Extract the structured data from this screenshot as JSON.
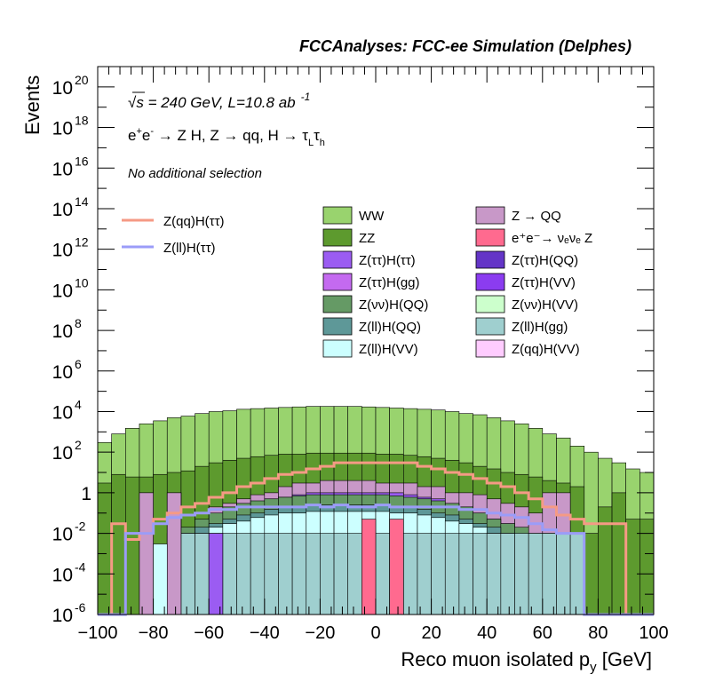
{
  "header": {
    "title": "FCCAnalyses: FCC-ee Simulation (Delphes)"
  },
  "annotations": {
    "sqrt": "√",
    "energy_lumi": "s = 240 GeV, L=10.8 ab",
    "lumi_exp": "-1",
    "process_parts": [
      "e",
      "+",
      "e",
      "-",
      " → Z H, Z  → qq, H  → τ",
      "L",
      "τ",
      "h"
    ],
    "selection": "No additional selection"
  },
  "colors": {
    "WW": "#99d36e",
    "ZZ": "#5d9a2e",
    "Z_QQ": "#c898c8",
    "eeZ": "#ff6a8f",
    "tautau_tautau": "#9b5cf2",
    "tautau_QQ": "#6435c7",
    "tautau_gg": "#c46af0",
    "tautau_VV": "#8b3cf0",
    "nunu_QQ": "#659a65",
    "nunu_VV": "#ccffcc",
    "ll_QQ": "#5e9898",
    "ll_gg": "#9fcfcf",
    "ll_VV": "#ccffff",
    "qq_VV": "#ffccff",
    "sig_qq": "#f59a85",
    "sig_ll": "#9b9cf8"
  },
  "chart_data": {
    "type": "histogram",
    "stacked": true,
    "log_y": true,
    "xlabel": "Reco muon isolated p",
    "xlabel_sub": "y",
    "xlabel_unit": " [GeV]",
    "ylabel": "Events",
    "xlim": [
      -100,
      100
    ],
    "ylim": [
      1e-06,
      1e+21
    ],
    "bin_width": 5,
    "x_ticks": [
      "−100",
      "−80",
      "−60",
      "−40",
      "−20",
      "0",
      "20",
      "40",
      "60",
      "80",
      "100"
    ],
    "y_ticks": [
      {
        "base": "10",
        "exp": "20"
      },
      {
        "base": "10",
        "exp": "18"
      },
      {
        "base": "10",
        "exp": "16"
      },
      {
        "base": "10",
        "exp": "14"
      },
      {
        "base": "10",
        "exp": "12"
      },
      {
        "base": "10",
        "exp": "10"
      },
      {
        "base": "10",
        "exp": "8"
      },
      {
        "base": "10",
        "exp": "6"
      },
      {
        "base": "10",
        "exp": "4"
      },
      {
        "base": "10",
        "exp": "2"
      },
      {
        "base": "1",
        "exp": ""
      },
      {
        "base": "10",
        "exp": "-2"
      },
      {
        "base": "10",
        "exp": "-4"
      },
      {
        "base": "10",
        "exp": "-6"
      }
    ],
    "legend_signals": [
      {
        "key": "sig_qq",
        "label": "Z(qq)H(ττ)"
      },
      {
        "key": "sig_ll",
        "label": "Z(ll)H(ττ)"
      }
    ],
    "legend_backgrounds": [
      {
        "key": "WW",
        "label": "WW"
      },
      {
        "key": "Z_QQ",
        "label": "Z → QQ"
      },
      {
        "key": "ZZ",
        "label": "ZZ"
      },
      {
        "key": "eeZ",
        "label": "e⁺e⁻→ νₑνₑ Z"
      },
      {
        "key": "tautau_tautau",
        "label": "Z(ττ)H(ττ)"
      },
      {
        "key": "tautau_QQ",
        "label": "Z(ττ)H(QQ)"
      },
      {
        "key": "tautau_gg",
        "label": "Z(ττ)H(gg)"
      },
      {
        "key": "tautau_VV",
        "label": "Z(ττ)H(VV)"
      },
      {
        "key": "nunu_QQ",
        "label": "Z(νν)H(QQ)"
      },
      {
        "key": "nunu_VV",
        "label": "Z(νν)H(VV)"
      },
      {
        "key": "ll_QQ",
        "label": "Z(ll)H(QQ)"
      },
      {
        "key": "ll_gg",
        "label": "Z(ll)H(gg)"
      },
      {
        "key": "ll_VV",
        "label": "Z(ll)H(VV)"
      },
      {
        "key": "qq_VV",
        "label": "Z(qq)H(VV)"
      }
    ],
    "stack_totals": [
      {
        "key": "WW",
        "values": [
          300.0,
          800.0,
          1500.0,
          2500.0,
          3500.0,
          5000.0,
          6000.0,
          8000.0,
          10000.0,
          11000.0,
          13000.0,
          14000.0,
          15000.0,
          16000.0,
          17000.0,
          18000.0,
          18000.0,
          18000.0,
          18000.0,
          17000.0,
          16000.0,
          15000.0,
          14000.0,
          13000.0,
          12000.0,
          10000.0,
          8000.0,
          7000.0,
          5000.0,
          3500.0,
          2500.0,
          1500.0,
          800.0,
          500.0,
          200.0,
          100.0,
          50.0,
          30.0,
          15.0,
          10.0
        ]
      },
      {
        "key": "ZZ",
        "values": [
          3,
          8,
          6,
          6,
          8,
          10,
          12,
          20,
          30,
          40,
          50,
          60,
          70,
          80,
          80,
          90,
          90,
          90,
          90,
          90,
          80,
          80,
          70,
          60,
          50,
          40,
          30,
          20,
          15,
          10,
          8,
          6,
          4,
          3,
          2,
          0.01,
          0.2,
          1,
          0.05,
          0.05
        ]
      },
      {
        "key": "Z_QQ",
        "values": [
          0,
          0,
          1e-06,
          1,
          1e-06,
          1,
          1e-06,
          1e-06,
          0.2,
          0.3,
          0.5,
          0.8,
          1,
          2,
          3,
          3,
          4,
          4,
          4,
          4,
          3,
          3,
          3,
          2,
          2,
          1,
          1,
          0.8,
          0.5,
          0.3,
          0.2,
          0.1,
          1,
          1,
          1e-06,
          1e-06,
          1e-06,
          1e-06,
          1e-06,
          1e-06
        ]
      },
      {
        "key": "tautau_tautau",
        "values": [
          0,
          0,
          0,
          0,
          1e-06,
          1e-06,
          1e-06,
          1e-06,
          0.05,
          0.1,
          0.2,
          0.3,
          0.5,
          0.6,
          0.8,
          1,
          1,
          1,
          1,
          1,
          1,
          1,
          0.8,
          0.6,
          0.5,
          0.3,
          0.2,
          0.1,
          0.05,
          0.03,
          0.01,
          1e-06,
          1e-06,
          1e-06,
          1e-06,
          1e-06,
          1e-06,
          1e-06,
          1e-06,
          1e-06
        ]
      },
      {
        "key": "nunu_QQ",
        "values": [
          0,
          0,
          0,
          0,
          1e-06,
          0.01,
          0.02,
          0.05,
          0.1,
          0.2,
          0.3,
          0.4,
          0.5,
          0.6,
          0.7,
          0.8,
          0.8,
          0.8,
          0.8,
          0.8,
          0.8,
          0.7,
          0.6,
          0.5,
          0.4,
          0.3,
          0.2,
          0.1,
          0.05,
          0.03,
          0.02,
          0.01,
          1e-06,
          1e-06,
          1e-06,
          1e-06,
          1e-06,
          1e-06,
          1e-06,
          1e-06
        ]
      },
      {
        "key": "ll_QQ",
        "values": [
          0,
          0,
          0,
          0,
          1e-06,
          0.003,
          0.01,
          0.02,
          0.03,
          0.05,
          0.08,
          0.1,
          0.15,
          0.2,
          0.2,
          0.25,
          0.25,
          0.25,
          0.25,
          0.25,
          0.25,
          0.2,
          0.2,
          0.15,
          0.1,
          0.08,
          0.05,
          0.03,
          0.02,
          0.01,
          0.005,
          0.003,
          1e-06,
          1e-06,
          1e-06,
          1e-06,
          1e-06,
          1e-06,
          1e-06,
          1e-06
        ]
      },
      {
        "key": "ll_VV",
        "values": [
          0,
          0,
          0,
          0,
          1e-06,
          0.002,
          0.005,
          0.01,
          0.02,
          0.03,
          0.04,
          0.06,
          0.08,
          0.1,
          0.1,
          0.12,
          0.12,
          0.12,
          0.12,
          0.12,
          0.12,
          0.1,
          0.1,
          0.08,
          0.06,
          0.04,
          0.03,
          0.02,
          0.01,
          0.005,
          0.003,
          0.002,
          0.01,
          0.01,
          0.01,
          1e-06,
          1e-06,
          1e-06,
          1e-06,
          1e-06
        ]
      },
      {
        "key": "ll_gg",
        "values": [
          0,
          0,
          0,
          0,
          1e-06,
          0.01,
          0.01,
          0.01,
          0.01,
          0.01,
          0.01,
          0.01,
          0.01,
          0.01,
          0.01,
          0.01,
          0.01,
          0.01,
          0.01,
          0.01,
          0.01,
          0.01,
          0.01,
          0.01,
          0.01,
          0.01,
          0.01,
          0.01,
          0.01,
          0.01,
          0.01,
          0.01,
          0.01,
          0.01,
          0.01,
          1e-06,
          1e-06,
          1e-06,
          1e-06,
          1e-06
        ]
      }
    ],
    "signal_series": [
      {
        "key": "sig_qq",
        "values": [
          1e-06,
          0.03,
          0.005,
          0.01,
          0.05,
          0.1,
          0.2,
          0.3,
          0.6,
          1,
          2,
          3,
          5,
          8,
          10.0,
          15.0,
          20.0,
          30.0,
          30.0,
          30.0,
          30.0,
          30.0,
          30.0,
          20.0,
          15.0,
          10.0,
          8,
          5,
          3,
          2,
          1,
          0.5,
          0.2,
          0.08,
          0.05,
          0.03,
          0.03,
          0.03,
          1e-06,
          1e-06
        ]
      },
      {
        "key": "sig_ll",
        "values": [
          1e-06,
          1e-06,
          0.01,
          0.01,
          0.03,
          0.06,
          0.08,
          0.1,
          0.15,
          0.15,
          0.2,
          0.2,
          0.2,
          0.2,
          0.2,
          0.25,
          0.2,
          0.25,
          0.2,
          0.2,
          0.25,
          0.2,
          0.2,
          0.2,
          0.2,
          0.2,
          0.15,
          0.15,
          0.1,
          0.08,
          0.06,
          0.03,
          0.015,
          0.01,
          0.01,
          1e-06,
          1e-06,
          1e-06,
          1e-06,
          1e-06
        ]
      }
    ],
    "isolated_bars": [
      {
        "key": "eeZ",
        "x_from": -5,
        "x_to": 0,
        "value": 0.05
      },
      {
        "key": "eeZ",
        "x_from": 5,
        "x_to": 10,
        "value": 0.05
      },
      {
        "key": "Z_QQ",
        "x_from": -85,
        "x_to": -80,
        "value": 1
      },
      {
        "key": "Z_QQ",
        "x_from": -75,
        "x_to": -70,
        "value": 1
      },
      {
        "key": "tautau_tautau",
        "x_from": -60,
        "x_to": -55,
        "value": 0.01
      },
      {
        "key": "ll_VV",
        "x_from": -80,
        "x_to": -75,
        "value": 0.003
      }
    ]
  }
}
